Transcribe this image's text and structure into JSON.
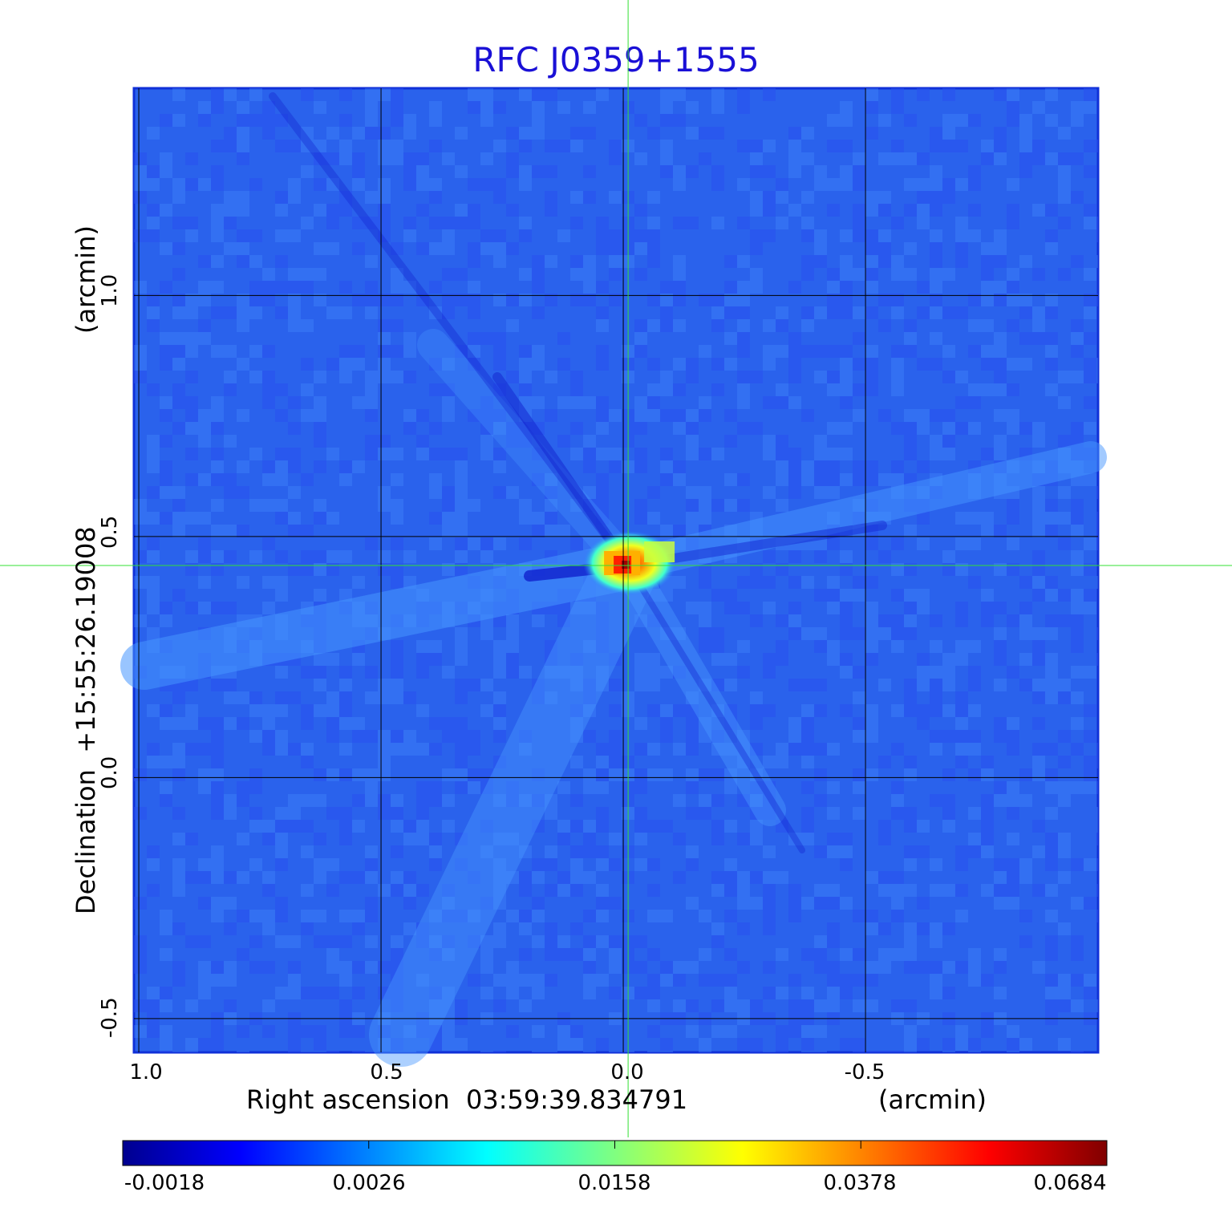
{
  "chart_data": {
    "type": "heatmap",
    "title": "RFC J0359+1555",
    "xlabel": "Right ascension  03:59:39.834791",
    "xunit": "(arcmin)",
    "ylabel": "Declination  +15:55:26.19008",
    "yunit": "(arcmin)",
    "x_ticks": [
      "1.0",
      "0.5",
      "0.0",
      "-0.5"
    ],
    "x_tick_values": [
      1.0,
      0.5,
      0.0,
      -0.5
    ],
    "y_ticks": [
      "1.0",
      "0.5",
      "0.0",
      "-0.5"
    ],
    "y_tick_values": [
      1.0,
      0.5,
      0.0,
      -0.5
    ],
    "xlim": [
      1.01,
      -0.98
    ],
    "ylim": [
      -0.57,
      1.43
    ],
    "grid": true,
    "colormap": "jet",
    "colorbar": {
      "ticks": [
        "-0.0018",
        "0.0026",
        "0.0158",
        "0.0378",
        "0.0684"
      ],
      "placement": "bottom"
    },
    "crosshair": {
      "x": -0.01,
      "y": 0.44,
      "color": "#33e033"
    },
    "source_peak": {
      "x": -0.01,
      "y": 0.44,
      "value": 0.0684
    }
  }
}
